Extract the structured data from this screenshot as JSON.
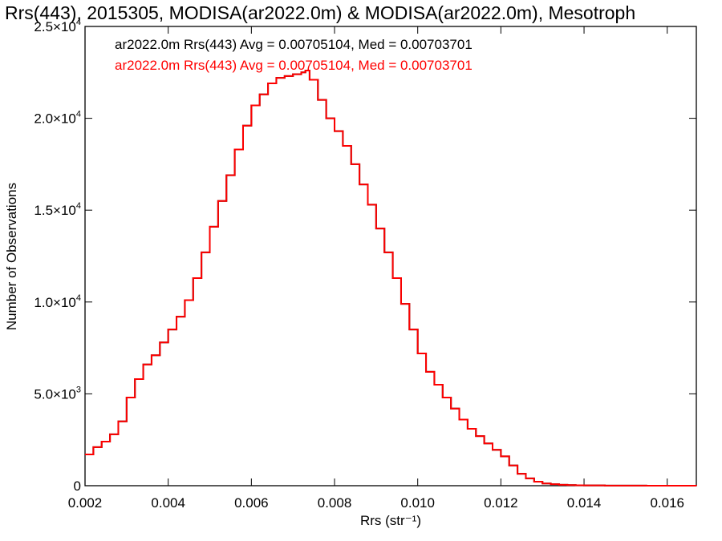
{
  "chart_data": {
    "type": "line",
    "title": "Rrs(443), 2015305, MODISA(ar2022.0m) & MODISA(ar2022.0m), Mesotroph",
    "xlabel": "Rrs (str⁻¹)",
    "ylabel": "Number of Observations",
    "xlim": [
      0.002,
      0.0167
    ],
    "ylim": [
      0,
      25000
    ],
    "step": true,
    "x_ticks": [
      {
        "value": 0.002,
        "label": "0.002"
      },
      {
        "value": 0.004,
        "label": "0.004"
      },
      {
        "value": 0.006,
        "label": "0.006"
      },
      {
        "value": 0.008,
        "label": "0.008"
      },
      {
        "value": 0.01,
        "label": "0.010"
      },
      {
        "value": 0.012,
        "label": "0.012"
      },
      {
        "value": 0.014,
        "label": "0.014"
      },
      {
        "value": 0.016,
        "label": "0.016"
      }
    ],
    "y_ticks": [
      {
        "value": 0,
        "mantissa": "0",
        "exponent": ""
      },
      {
        "value": 5000,
        "mantissa": "5.0×10",
        "exponent": "3"
      },
      {
        "value": 10000,
        "mantissa": "1.0×10",
        "exponent": "4"
      },
      {
        "value": 15000,
        "mantissa": "1.5×10",
        "exponent": "4"
      },
      {
        "value": 20000,
        "mantissa": "2.0×10",
        "exponent": "4"
      },
      {
        "value": 25000,
        "mantissa": "2.5×10",
        "exponent": "4"
      }
    ],
    "legend": [
      {
        "text": "ar2022.0m Rrs(443) Avg = 0.00705104, Med = 0.00703701",
        "color": "#000000"
      },
      {
        "text": "ar2022.0m Rrs(443) Avg = 0.00705104, Med = 0.00703701",
        "color": "#ff0000"
      }
    ],
    "legend_placement": "top-left",
    "series": [
      {
        "color": "#000000",
        "x": [
          0.002,
          0.0022,
          0.0024,
          0.0026,
          0.0028,
          0.003,
          0.0032,
          0.0034,
          0.0036,
          0.0038,
          0.004,
          0.0042,
          0.0044,
          0.0046,
          0.0048,
          0.005,
          0.0052,
          0.0054,
          0.0056,
          0.0058,
          0.006,
          0.0062,
          0.0064,
          0.0066,
          0.0068,
          0.007,
          0.0072,
          0.0073,
          0.0074,
          0.0076,
          0.0078,
          0.008,
          0.0082,
          0.0084,
          0.0086,
          0.0088,
          0.009,
          0.0092,
          0.0094,
          0.0096,
          0.0098,
          0.01,
          0.0102,
          0.0104,
          0.0106,
          0.0108,
          0.011,
          0.0112,
          0.0114,
          0.0116,
          0.0118,
          0.012,
          0.0122,
          0.0124,
          0.0126,
          0.0128,
          0.013,
          0.0132,
          0.0134,
          0.0136,
          0.0138,
          0.014,
          0.0145,
          0.015,
          0.0155,
          0.016,
          0.0167
        ],
        "values": [
          1700,
          2100,
          2400,
          2800,
          3500,
          4800,
          5800,
          6600,
          7100,
          7800,
          8500,
          9200,
          10100,
          11300,
          12700,
          14100,
          15500,
          16900,
          18300,
          19600,
          20700,
          21300,
          21900,
          22200,
          22300,
          22400,
          22500,
          22600,
          22100,
          21000,
          20000,
          19300,
          18500,
          17500,
          16400,
          15300,
          14000,
          12700,
          11300,
          9900,
          8500,
          7200,
          6200,
          5500,
          4800,
          4200,
          3600,
          3100,
          2700,
          2300,
          1950,
          1600,
          1100,
          650,
          400,
          220,
          120,
          80,
          50,
          30,
          20,
          14,
          8,
          4,
          2,
          1,
          0
        ]
      },
      {
        "color": "#ff0000",
        "x": [
          0.002,
          0.0022,
          0.0024,
          0.0026,
          0.0028,
          0.003,
          0.0032,
          0.0034,
          0.0036,
          0.0038,
          0.004,
          0.0042,
          0.0044,
          0.0046,
          0.0048,
          0.005,
          0.0052,
          0.0054,
          0.0056,
          0.0058,
          0.006,
          0.0062,
          0.0064,
          0.0066,
          0.0068,
          0.007,
          0.0072,
          0.0073,
          0.0074,
          0.0076,
          0.0078,
          0.008,
          0.0082,
          0.0084,
          0.0086,
          0.0088,
          0.009,
          0.0092,
          0.0094,
          0.0096,
          0.0098,
          0.01,
          0.0102,
          0.0104,
          0.0106,
          0.0108,
          0.011,
          0.0112,
          0.0114,
          0.0116,
          0.0118,
          0.012,
          0.0122,
          0.0124,
          0.0126,
          0.0128,
          0.013,
          0.0132,
          0.0134,
          0.0136,
          0.0138,
          0.014,
          0.0145,
          0.015,
          0.0155,
          0.016,
          0.0167
        ],
        "values": [
          1700,
          2100,
          2400,
          2800,
          3500,
          4800,
          5800,
          6600,
          7100,
          7800,
          8500,
          9200,
          10100,
          11300,
          12700,
          14100,
          15500,
          16900,
          18300,
          19600,
          20700,
          21300,
          21900,
          22200,
          22300,
          22400,
          22500,
          22600,
          22100,
          21000,
          20000,
          19300,
          18500,
          17500,
          16400,
          15300,
          14000,
          12700,
          11300,
          9900,
          8500,
          7200,
          6200,
          5500,
          4800,
          4200,
          3600,
          3100,
          2700,
          2300,
          1950,
          1600,
          1100,
          650,
          400,
          220,
          120,
          80,
          50,
          30,
          20,
          14,
          8,
          4,
          2,
          1,
          0
        ]
      }
    ]
  }
}
